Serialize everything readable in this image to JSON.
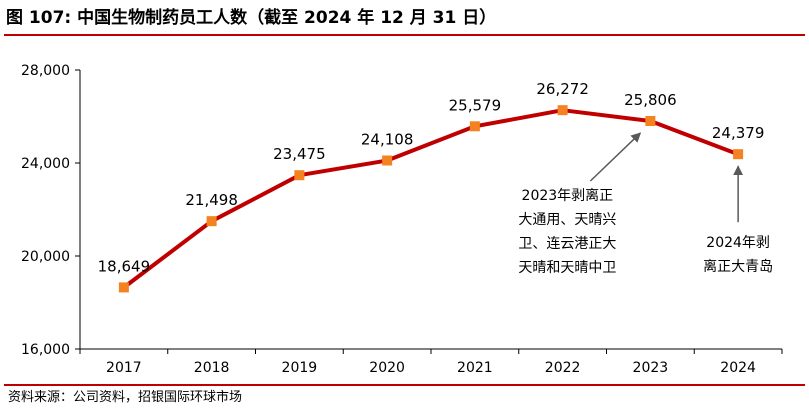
{
  "title": "图 107: 中国生物制药员工人数（截至 2024 年 12 月 31 日）",
  "source": "资料来源：公司资料，招银国际环球市场",
  "colors": {
    "line": "#c00000",
    "marker": "#f58220",
    "arrow": "#595959",
    "axis": "#000000",
    "rule": "#c00000"
  },
  "chart_data": {
    "type": "line",
    "title": "",
    "xlabel": "",
    "ylabel": "",
    "categories": [
      "2017",
      "2018",
      "2019",
      "2020",
      "2021",
      "2022",
      "2023",
      "2024"
    ],
    "series": [
      {
        "values": [
          18649,
          21498,
          23475,
          24108,
          25579,
          26272,
          25806,
          24379
        ]
      }
    ],
    "data_labels": [
      "18,649",
      "21,498",
      "23,475",
      "24,108",
      "25,579",
      "26,272",
      "25,806",
      "24,379"
    ],
    "ylim": [
      16000,
      28000
    ],
    "yticks": [
      16000,
      20000,
      24000,
      28000
    ],
    "ytick_labels": [
      "16,000",
      "20,000",
      "24,000",
      "28,000"
    ],
    "grid": false,
    "legend": "none",
    "annotations": [
      {
        "target": "2023",
        "lines": [
          "2023年剥离正",
          "大通用、天晴兴",
          "卫、连云港正大",
          "天晴和天晴中卫"
        ]
      },
      {
        "target": "2024",
        "lines": [
          "2024年剥",
          "离正大青岛"
        ]
      }
    ]
  }
}
